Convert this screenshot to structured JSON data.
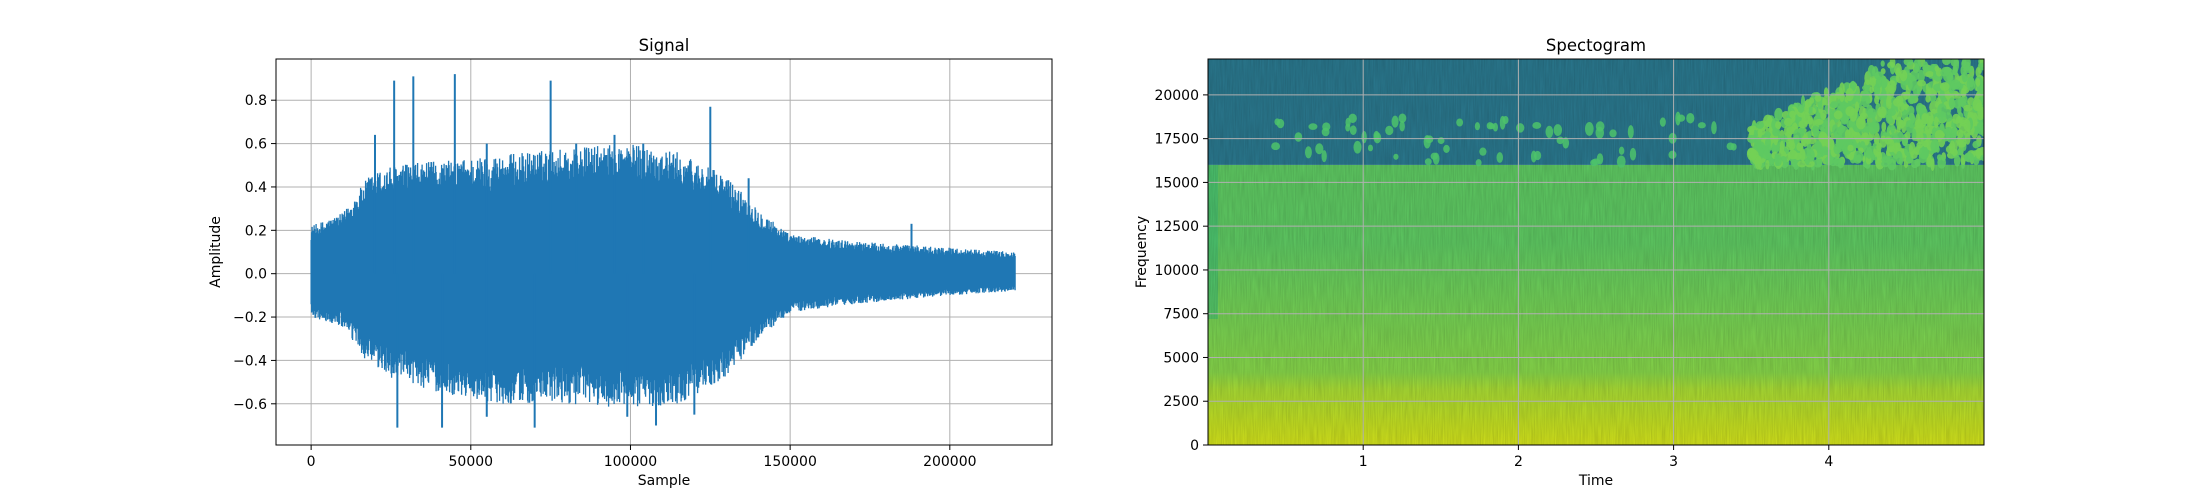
{
  "chart_data": [
    {
      "type": "line",
      "title": "Signal",
      "xlabel": "Sample",
      "ylabel": "Amplitude",
      "xlim": [
        -11000,
        232000
      ],
      "ylim": [
        -0.79,
        0.99
      ],
      "grid": true,
      "xticks": [
        0,
        50000,
        100000,
        150000,
        200000
      ],
      "xtick_labels": [
        "0",
        "50000",
        "100000",
        "150000",
        "200000"
      ],
      "yticks": [
        -0.6,
        -0.4,
        -0.2,
        0.0,
        0.2,
        0.4,
        0.6,
        0.8
      ],
      "ytick_labels": [
        "−0.6",
        "−0.4",
        "−0.2",
        "0.0",
        "0.2",
        "0.4",
        "0.6",
        "0.8"
      ],
      "series": [
        {
          "color": "#1f77b4",
          "envelope": {
            "x": [
              0,
              10000,
              18000,
              25000,
              40000,
              60000,
              80000,
              100000,
              115000,
              130000,
              140000,
              150000,
              170000,
              200000,
              220500
            ],
            "upper": [
              0.22,
              0.28,
              0.45,
              0.5,
              0.52,
              0.55,
              0.58,
              0.6,
              0.56,
              0.45,
              0.3,
              0.18,
              0.15,
              0.12,
              0.1
            ],
            "lower": [
              -0.2,
              -0.25,
              -0.42,
              -0.48,
              -0.55,
              -0.6,
              -0.6,
              -0.62,
              -0.6,
              -0.48,
              -0.3,
              -0.18,
              -0.14,
              -0.1,
              -0.08
            ]
          },
          "peaks": [
            {
              "x": 20000,
              "y": 0.64
            },
            {
              "x": 26000,
              "y": 0.89
            },
            {
              "x": 32000,
              "y": 0.91
            },
            {
              "x": 45000,
              "y": 0.92
            },
            {
              "x": 55000,
              "y": 0.6
            },
            {
              "x": 75000,
              "y": 0.89
            },
            {
              "x": 83000,
              "y": 0.6
            },
            {
              "x": 95000,
              "y": 0.64
            },
            {
              "x": 104000,
              "y": 0.6
            },
            {
              "x": 125000,
              "y": 0.77
            },
            {
              "x": 137000,
              "y": 0.44
            },
            {
              "x": 188000,
              "y": 0.23
            },
            {
              "x": 27000,
              "y": -0.71
            },
            {
              "x": 41000,
              "y": -0.71
            },
            {
              "x": 55000,
              "y": -0.66
            },
            {
              "x": 70000,
              "y": -0.71
            },
            {
              "x": 99000,
              "y": -0.66
            },
            {
              "x": 108000,
              "y": -0.7
            },
            {
              "x": 120000,
              "y": -0.65
            }
          ]
        }
      ]
    },
    {
      "type": "heatmap",
      "title": "Spectogram",
      "xlabel": "Time",
      "ylabel": "Frequency",
      "xlim": [
        0.0,
        5.0
      ],
      "ylim": [
        0,
        22050
      ],
      "grid": true,
      "xticks": [
        1,
        2,
        3,
        4
      ],
      "xtick_labels": [
        "1",
        "2",
        "3",
        "4"
      ],
      "yticks": [
        0,
        2500,
        5000,
        7500,
        10000,
        12500,
        15000,
        17500,
        20000
      ],
      "ytick_labels": [
        "0",
        "2500",
        "5000",
        "7500",
        "10000",
        "12500",
        "15000",
        "17500",
        "20000"
      ],
      "colormap": "viridis",
      "cutoff_frequency": 16000,
      "cutoff_end_time": 3.5,
      "bands": [
        {
          "f_low": 0,
          "f_high": 5000,
          "color": "#c0df25"
        },
        {
          "f_low": 5000,
          "f_high": 16000,
          "color": "#6ccd5a"
        },
        {
          "f_low": 16000,
          "f_high": 22050,
          "color": "#2a788e"
        }
      ]
    }
  ]
}
